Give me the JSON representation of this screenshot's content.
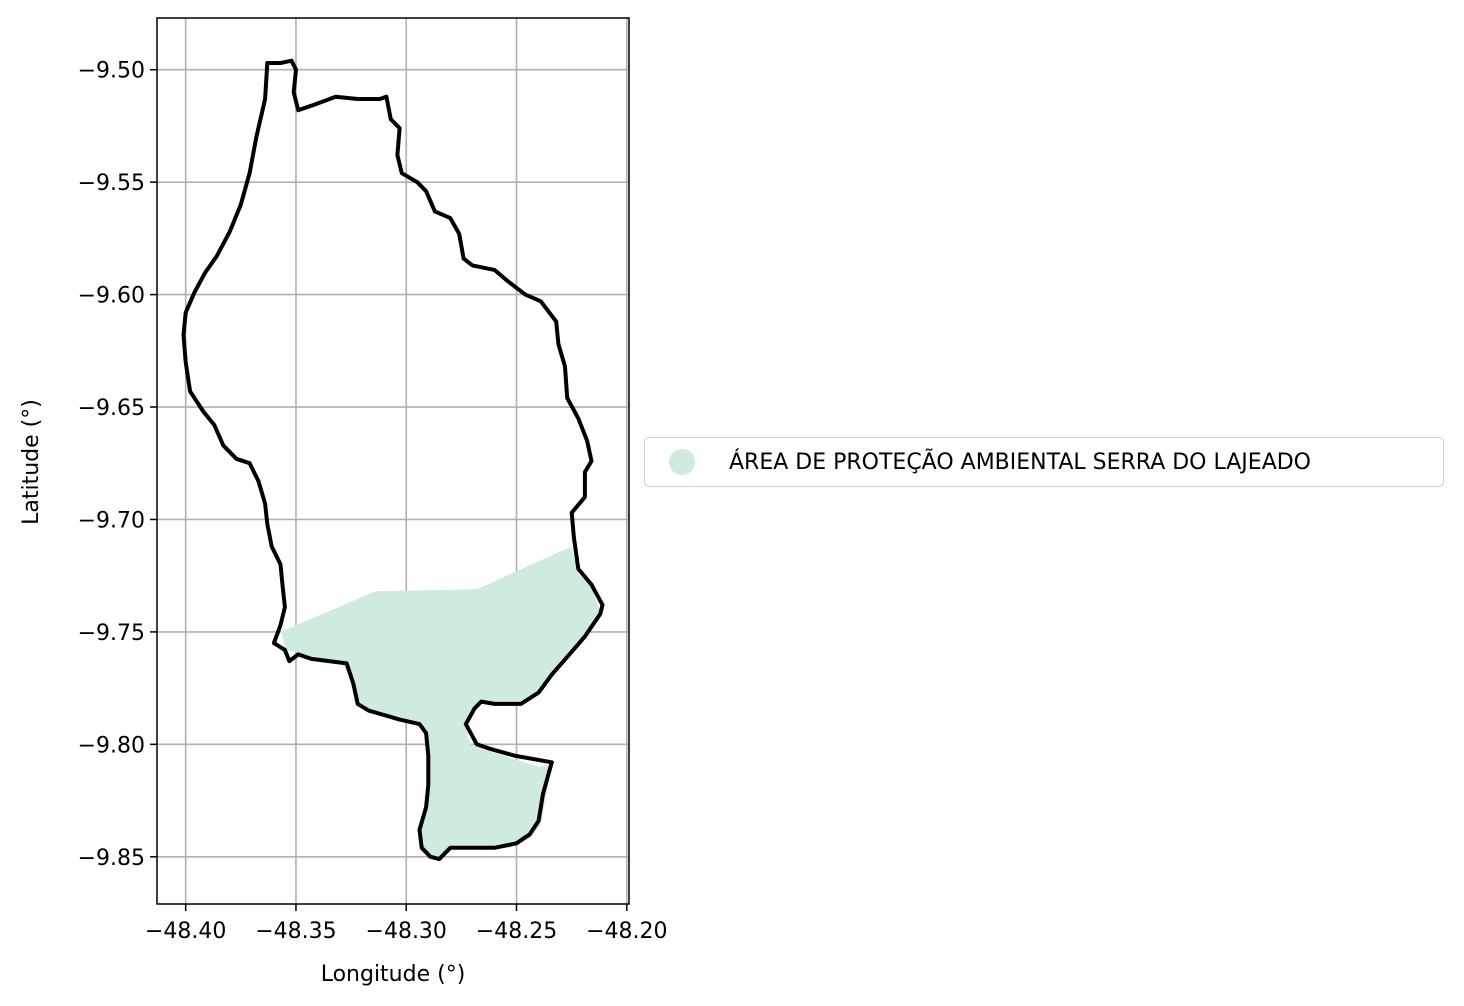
{
  "chart_data": {
    "type": "map",
    "xlabel": "Longitude (°)",
    "ylabel": "Latitude (°)",
    "xlim": [
      -48.413,
      -48.199
    ],
    "ylim": [
      -9.871,
      -9.477
    ],
    "grid": true,
    "x_ticks": [
      -48.4,
      -48.35,
      -48.3,
      -48.25,
      -48.2
    ],
    "x_tick_labels": [
      "−48.40",
      "−48.35",
      "−48.30",
      "−48.25",
      "−48.20"
    ],
    "y_ticks": [
      -9.5,
      -9.55,
      -9.6,
      -9.65,
      -9.7,
      -9.75,
      -9.8,
      -9.85
    ],
    "y_tick_labels": [
      "−9.50",
      "−9.55",
      "−9.60",
      "−9.65",
      "−9.70",
      "−9.75",
      "−9.80",
      "−9.85"
    ],
    "legend_placement": "center-right outside",
    "layers": [
      {
        "name": "ÁREA DE PROTEÇÃO AMBIENTAL SERRA DO LAJEADO",
        "kind": "filled-polygon",
        "color": "#cfebdd",
        "coordinates": [
          [
            -48.357,
            -9.75
          ],
          [
            -48.314,
            -9.732
          ],
          [
            -48.268,
            -9.731
          ],
          [
            -48.225,
            -9.712
          ],
          [
            -48.222,
            -9.724
          ],
          [
            -48.216,
            -9.73
          ],
          [
            -48.212,
            -9.741
          ],
          [
            -48.219,
            -9.753
          ],
          [
            -48.226,
            -9.76
          ],
          [
            -48.235,
            -9.77
          ],
          [
            -48.243,
            -9.78
          ],
          [
            -48.248,
            -9.783
          ],
          [
            -48.26,
            -9.783
          ],
          [
            -48.265,
            -9.781
          ],
          [
            -48.269,
            -9.784
          ],
          [
            -48.273,
            -9.793
          ],
          [
            -48.271,
            -9.8
          ],
          [
            -48.266,
            -9.802
          ],
          [
            -48.24,
            -9.81
          ],
          [
            -48.234,
            -9.809
          ],
          [
            -48.237,
            -9.825
          ],
          [
            -48.239,
            -9.836
          ],
          [
            -48.244,
            -9.842
          ],
          [
            -48.253,
            -9.846
          ],
          [
            -48.266,
            -9.847
          ],
          [
            -48.278,
            -9.846
          ],
          [
            -48.284,
            -9.85
          ],
          [
            -48.29,
            -9.85
          ],
          [
            -48.294,
            -9.845
          ],
          [
            -48.293,
            -9.835
          ],
          [
            -48.29,
            -9.822
          ],
          [
            -48.29,
            -9.81
          ],
          [
            -48.29,
            -9.797
          ],
          [
            -48.295,
            -9.791
          ],
          [
            -48.303,
            -9.789
          ],
          [
            -48.313,
            -9.786
          ],
          [
            -48.322,
            -9.781
          ],
          [
            -48.325,
            -9.771
          ],
          [
            -48.33,
            -9.763
          ],
          [
            -48.342,
            -9.762
          ],
          [
            -48.349,
            -9.759
          ],
          [
            -48.355,
            -9.758
          ],
          [
            -48.356,
            -9.752
          ]
        ]
      },
      {
        "name": "Boundary",
        "kind": "outline",
        "color": "#000000",
        "coordinates": [
          [
            -48.363,
            -9.497
          ],
          [
            -48.357,
            -9.497
          ],
          [
            -48.352,
            -9.496
          ],
          [
            -48.35,
            -9.5
          ],
          [
            -48.351,
            -9.51
          ],
          [
            -48.349,
            -9.518
          ],
          [
            -48.343,
            -9.516
          ],
          [
            -48.332,
            -9.512
          ],
          [
            -48.322,
            -9.513
          ],
          [
            -48.312,
            -9.513
          ],
          [
            -48.309,
            -9.512
          ],
          [
            -48.307,
            -9.522
          ],
          [
            -48.303,
            -9.526
          ],
          [
            -48.304,
            -9.538
          ],
          [
            -48.302,
            -9.546
          ],
          [
            -48.295,
            -9.55
          ],
          [
            -48.291,
            -9.554
          ],
          [
            -48.287,
            -9.563
          ],
          [
            -48.28,
            -9.566
          ],
          [
            -48.276,
            -9.573
          ],
          [
            -48.274,
            -9.584
          ],
          [
            -48.27,
            -9.587
          ],
          [
            -48.26,
            -9.589
          ],
          [
            -48.254,
            -9.594
          ],
          [
            -48.246,
            -9.6
          ],
          [
            -48.239,
            -9.603
          ],
          [
            -48.232,
            -9.612
          ],
          [
            -48.231,
            -9.622
          ],
          [
            -48.228,
            -9.632
          ],
          [
            -48.227,
            -9.646
          ],
          [
            -48.222,
            -9.655
          ],
          [
            -48.218,
            -9.665
          ],
          [
            -48.216,
            -9.674
          ],
          [
            -48.219,
            -9.679
          ],
          [
            -48.219,
            -9.69
          ],
          [
            -48.225,
            -9.697
          ],
          [
            -48.224,
            -9.708
          ],
          [
            -48.222,
            -9.722
          ],
          [
            -48.216,
            -9.729
          ],
          [
            -48.211,
            -9.738
          ],
          [
            -48.212,
            -9.742
          ],
          [
            -48.219,
            -9.752
          ],
          [
            -48.226,
            -9.76
          ],
          [
            -48.234,
            -9.769
          ],
          [
            -48.24,
            -9.777
          ],
          [
            -48.248,
            -9.782
          ],
          [
            -48.26,
            -9.782
          ],
          [
            -48.266,
            -9.781
          ],
          [
            -48.269,
            -9.784
          ],
          [
            -48.273,
            -9.791
          ],
          [
            -48.268,
            -9.8
          ],
          [
            -48.262,
            -9.802
          ],
          [
            -48.251,
            -9.805
          ],
          [
            -48.234,
            -9.808
          ],
          [
            -48.238,
            -9.822
          ],
          [
            -48.24,
            -9.834
          ],
          [
            -48.244,
            -9.84
          ],
          [
            -48.25,
            -9.844
          ],
          [
            -48.26,
            -9.846
          ],
          [
            -48.27,
            -9.846
          ],
          [
            -48.28,
            -9.846
          ],
          [
            -48.285,
            -9.851
          ],
          [
            -48.289,
            -9.85
          ],
          [
            -48.293,
            -9.846
          ],
          [
            -48.294,
            -9.838
          ],
          [
            -48.291,
            -9.828
          ],
          [
            -48.29,
            -9.818
          ],
          [
            -48.29,
            -9.805
          ],
          [
            -48.291,
            -9.795
          ],
          [
            -48.294,
            -9.791
          ],
          [
            -48.303,
            -9.789
          ],
          [
            -48.31,
            -9.787
          ],
          [
            -48.317,
            -9.785
          ],
          [
            -48.322,
            -9.782
          ],
          [
            -48.324,
            -9.773
          ],
          [
            -48.327,
            -9.764
          ],
          [
            -48.335,
            -9.763
          ],
          [
            -48.343,
            -9.762
          ],
          [
            -48.349,
            -9.76
          ],
          [
            -48.353,
            -9.763
          ],
          [
            -48.355,
            -9.758
          ],
          [
            -48.36,
            -9.755
          ],
          [
            -48.357,
            -9.747
          ],
          [
            -48.355,
            -9.739
          ],
          [
            -48.356,
            -9.73
          ],
          [
            -48.357,
            -9.72
          ],
          [
            -48.361,
            -9.712
          ],
          [
            -48.363,
            -9.702
          ],
          [
            -48.364,
            -9.693
          ],
          [
            -48.367,
            -9.683
          ],
          [
            -48.371,
            -9.675
          ],
          [
            -48.377,
            -9.673
          ],
          [
            -48.383,
            -9.667
          ],
          [
            -48.387,
            -9.658
          ],
          [
            -48.392,
            -9.652
          ],
          [
            -48.398,
            -9.643
          ],
          [
            -48.4,
            -9.63
          ],
          [
            -48.401,
            -9.618
          ],
          [
            -48.4,
            -9.608
          ],
          [
            -48.396,
            -9.599
          ],
          [
            -48.391,
            -9.59
          ],
          [
            -48.386,
            -9.583
          ],
          [
            -48.38,
            -9.572
          ],
          [
            -48.375,
            -9.56
          ],
          [
            -48.371,
            -9.546
          ],
          [
            -48.368,
            -9.53
          ],
          [
            -48.364,
            -9.513
          ],
          [
            -48.363,
            -9.497
          ]
        ]
      }
    ]
  },
  "legend": {
    "items": [
      {
        "label": "ÁREA DE PROTEÇÃO AMBIENTAL SERRA DO LAJEADO",
        "color": "#cfebdd"
      }
    ]
  }
}
